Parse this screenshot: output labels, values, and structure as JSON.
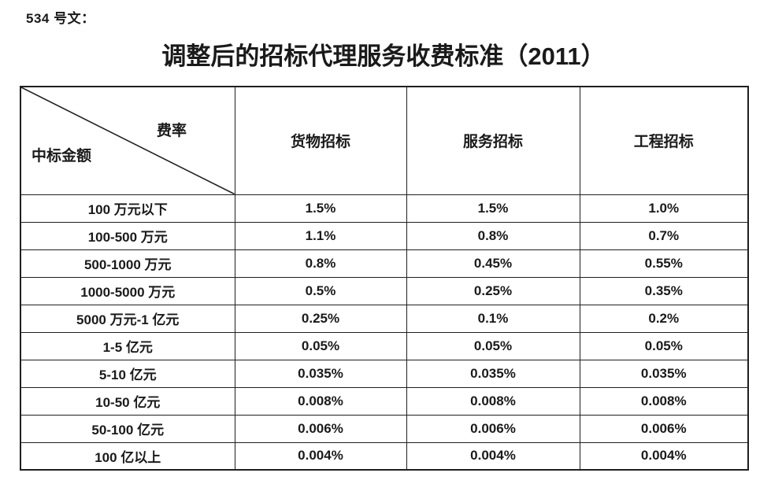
{
  "page": {
    "doc_label": "534 号文：",
    "title": "调整后的招标代理服务收费标准（2011）"
  },
  "table": {
    "corner": {
      "top_right": "费率",
      "bottom_left": "中标金额"
    },
    "columns": [
      "货物招标",
      "服务招标",
      "工程招标"
    ],
    "rows": [
      {
        "label": "100 万元以下",
        "values": [
          "1.5%",
          "1.5%",
          "1.0%"
        ]
      },
      {
        "label": "100-500 万元",
        "values": [
          "1.1%",
          "0.8%",
          "0.7%"
        ]
      },
      {
        "label": "500-1000 万元",
        "values": [
          "0.8%",
          "0.45%",
          "0.55%"
        ]
      },
      {
        "label": "1000-5000 万元",
        "values": [
          "0.5%",
          "0.25%",
          "0.35%"
        ]
      },
      {
        "label": "5000 万元-1 亿元",
        "values": [
          "0.25%",
          "0.1%",
          "0.2%"
        ]
      },
      {
        "label": "1-5 亿元",
        "values": [
          "0.05%",
          "0.05%",
          "0.05%"
        ]
      },
      {
        "label": "5-10 亿元",
        "values": [
          "0.035%",
          "0.035%",
          "0.035%"
        ]
      },
      {
        "label": "10-50 亿元",
        "values": [
          "0.008%",
          "0.008%",
          "0.008%"
        ]
      },
      {
        "label": "50-100 亿元",
        "values": [
          "0.006%",
          "0.006%",
          "0.006%"
        ]
      },
      {
        "label": "100 亿以上",
        "values": [
          "0.004%",
          "0.004%",
          "0.004%"
        ]
      }
    ]
  },
  "colors": {
    "text": "#1a1a1a",
    "border": "#1f1f1f",
    "background": "#ffffff"
  }
}
